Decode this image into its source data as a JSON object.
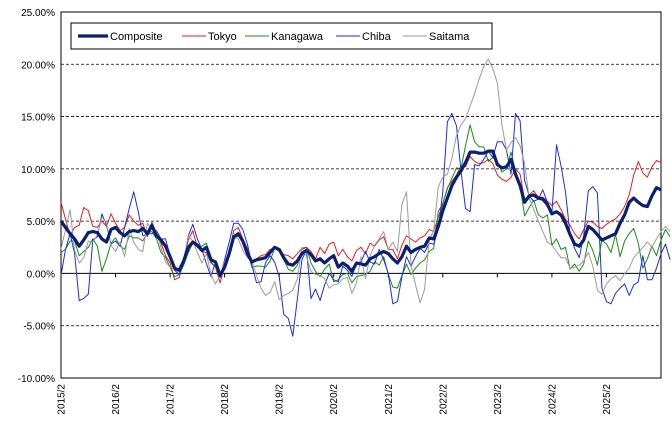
{
  "chart_data": {
    "type": "line",
    "title": "",
    "xlabel": "",
    "ylabel": "",
    "ylim": [
      -10,
      25
    ],
    "y_ticks": [
      "25.00%",
      "20.00%",
      "15.00%",
      "10.00%",
      "5.00%",
      "0.00%",
      "-5.00%",
      "-10.00%"
    ],
    "x_ticks": [
      "2015/2",
      "2016/2",
      "2017/2",
      "2018/2",
      "2019/2",
      "2020/2",
      "2021/2",
      "2022/2",
      "2023/2",
      "2024/2",
      "2025/2"
    ],
    "x_start": "2015/2",
    "x_end": "2025/2",
    "grid": "horizontal dashed",
    "legend_position": "top-left",
    "series": [
      {
        "name": "Composite",
        "color": "#0a1f6e",
        "width": 3.2,
        "values": [
          5.0,
          4.4,
          3.8,
          3.3,
          2.6,
          3.2,
          3.9,
          4.0,
          3.9,
          3.3,
          3.0,
          4.2,
          4.4,
          3.9,
          3.6,
          4.0,
          4.1,
          4.0,
          4.3,
          3.8,
          4.6,
          3.6,
          3.2,
          2.6,
          1.6,
          0.5,
          0.3,
          1.2,
          2.5,
          3.0,
          2.7,
          2.2,
          2.5,
          1.3,
          1.1,
          -0.2,
          0.6,
          1.9,
          3.5,
          3.8,
          3.1,
          1.9,
          1.1,
          1.3,
          1.4,
          1.5,
          2.0,
          2.5,
          2.3,
          1.5,
          0.9,
          0.8,
          1.2,
          1.9,
          2.2,
          1.8,
          1.2,
          1.4,
          1.0,
          1.4,
          1.7,
          0.6,
          1.0,
          0.7,
          0.2,
          1.0,
          0.9,
          0.8,
          1.4,
          1.6,
          1.9,
          2.1,
          1.9,
          1.4,
          1.0,
          1.6,
          2.6,
          2.0,
          2.3,
          2.5,
          2.6,
          3.4,
          3.3,
          4.5,
          6.0,
          7.2,
          8.4,
          9.2,
          9.8,
          10.6,
          11.6,
          11.6,
          11.5,
          11.5,
          11.7,
          11.7,
          10.4,
          10.1,
          10.2,
          10.9,
          9.5,
          8.4,
          6.8,
          7.4,
          7.5,
          7.2,
          7.1,
          6.6,
          5.7,
          5.9,
          5.6,
          4.8,
          3.7,
          2.8,
          2.6,
          3.2,
          4.5,
          4.2,
          3.7,
          3.2,
          3.4,
          3.6,
          3.8,
          4.8,
          5.6,
          6.8,
          7.2,
          6.8,
          6.5,
          6.4,
          7.4,
          8.2,
          8.0
        ]
      },
      {
        "name": "Tokyo",
        "color": "#e81c1c",
        "width": 1,
        "values": [
          6.8,
          5.2,
          3.6,
          4.4,
          4.6,
          6.3,
          6.0,
          4.5,
          4.4,
          5.0,
          4.5,
          5.7,
          4.8,
          4.1,
          4.4,
          5.6,
          5.0,
          4.6,
          4.8,
          3.5,
          4.9,
          3.7,
          2.9,
          1.7,
          1.0,
          -0.6,
          -0.4,
          1.2,
          3.2,
          4.1,
          2.5,
          2.1,
          2.0,
          1.0,
          0.6,
          -0.9,
          0.7,
          2.0,
          4.1,
          4.4,
          3.3,
          2.4,
          1.2,
          1.4,
          1.7,
          1.8,
          2.3,
          2.4,
          2.1,
          1.8,
          1.7,
          1.4,
          1.9,
          2.4,
          2.5,
          2.1,
          1.4,
          2.5,
          1.9,
          2.8,
          3.0,
          1.7,
          2.3,
          1.6,
          1.2,
          2.2,
          2.5,
          1.9,
          2.9,
          2.6,
          3.2,
          3.5,
          2.3,
          2.3,
          1.4,
          2.7,
          3.6,
          3.3,
          3.0,
          3.4,
          3.6,
          4.2,
          4.0,
          5.4,
          6.6,
          8.2,
          8.8,
          9.4,
          10.3,
          10.2,
          11.2,
          10.7,
          10.5,
          10.6,
          10.9,
          10.5,
          9.4,
          9.0,
          8.8,
          9.2,
          10.0,
          9.5,
          7.0,
          7.5,
          7.9,
          7.3,
          7.3,
          6.9,
          6.5,
          6.9,
          6.1,
          5.2,
          4.6,
          3.8,
          3.3,
          4.2,
          5.0,
          4.9,
          4.5,
          4.3,
          4.7,
          5.0,
          5.2,
          5.7,
          6.4,
          7.5,
          9.4,
          10.7,
          9.6,
          9.2,
          10.2,
          10.8,
          10.6
        ]
      },
      {
        "name": "Kanagawa",
        "color": "#1a8a1a",
        "width": 1,
        "values": [
          2.0,
          2.3,
          3.1,
          3.1,
          1.7,
          2.1,
          2.5,
          3.3,
          2.6,
          0.2,
          1.4,
          2.9,
          3.4,
          2.6,
          2.3,
          3.6,
          3.4,
          3.4,
          3.1,
          3.9,
          4.0,
          3.3,
          2.0,
          1.5,
          0.6,
          -0.3,
          -0.1,
          0.8,
          2.0,
          2.9,
          2.5,
          2.6,
          2.9,
          1.1,
          0.6,
          0.0,
          0.7,
          1.8,
          3.3,
          3.6,
          3.0,
          2.1,
          0.6,
          0.7,
          0.7,
          0.6,
          1.2,
          2.4,
          2.3,
          1.3,
          0.4,
          0.2,
          0.8,
          2.3,
          2.5,
          1.0,
          0.2,
          -0.3,
          0.4,
          0.9,
          -0.8,
          -0.6,
          -0.1,
          0.0,
          -0.9,
          -0.3,
          -0.2,
          -0.1,
          0.2,
          1.1,
          0.8,
          1.6,
          -0.1,
          -1.3,
          -1.4,
          -0.2,
          0.9,
          -0.1,
          0.5,
          1.0,
          1.3,
          2.1,
          2.4,
          5.9,
          6.7,
          8.1,
          9.1,
          10.1,
          10.0,
          12.2,
          14.2,
          12.6,
          12.1,
          12.1,
          10.7,
          11.1,
          10.7,
          9.7,
          10.0,
          11.6,
          9.8,
          8.4,
          5.5,
          6.3,
          7.0,
          5.6,
          5.3,
          5.6,
          2.7,
          3.3,
          2.3,
          2.5,
          0.4,
          0.9,
          0.2,
          0.9,
          3.1,
          2.2,
          0.8,
          3.2,
          2.8,
          2.0,
          3.7,
          1.6,
          3.1,
          3.8,
          4.3,
          2.9,
          0.5,
          1.4,
          2.6,
          1.7,
          3.2,
          4.2,
          3.5
        ]
      },
      {
        "name": "Chiba",
        "color": "#1a2ee0",
        "width": 1,
        "values": [
          -0.2,
          2.3,
          3.8,
          1.9,
          -2.6,
          -2.4,
          -2.0,
          3.2,
          3.5,
          5.7,
          4.6,
          2.8,
          3.1,
          2.6,
          4.4,
          6.2,
          7.8,
          5.9,
          3.6,
          3.8,
          3.8,
          4.1,
          3.3,
          3.3,
          1.7,
          0.3,
          -0.1,
          1.2,
          3.6,
          4.7,
          3.3,
          2.3,
          0.9,
          -0.3,
          1.1,
          -0.4,
          1.3,
          3.0,
          4.8,
          4.8,
          4.2,
          2.8,
          0.8,
          -0.9,
          -0.8,
          1.0,
          1.7,
          1.1,
          -0.3,
          -3.9,
          -4.3,
          -6.0,
          -2.4,
          1.3,
          2.3,
          -2.4,
          -1.5,
          -2.6,
          -1.1,
          0.0,
          -0.6,
          -0.8,
          0.7,
          0.3,
          -0.3,
          1.0,
          1.1,
          2.1,
          1.1,
          0.9,
          2.3,
          1.3,
          0.0,
          -2.9,
          -2.7,
          -0.3,
          1.6,
          0.7,
          1.6,
          2.4,
          2.0,
          2.9,
          2.8,
          4.2,
          7.8,
          14.5,
          15.3,
          14.1,
          9.8,
          6.2,
          5.9,
          10.4,
          10.3,
          10.9,
          11.7,
          11.1,
          12.6,
          12.6,
          11.8,
          9.5,
          15.3,
          14.6,
          8.9,
          7.4,
          6.9,
          7.1,
          8.0,
          6.8,
          5.8,
          12.3,
          10.3,
          7.8,
          3.7,
          2.4,
          1.5,
          3.6,
          7.9,
          8.3,
          7.7,
          -1.4,
          -2.7,
          -2.9,
          -1.9,
          -1.4,
          -1.0,
          -2.1,
          -1.1,
          -0.8,
          1.7,
          -0.6,
          -0.6,
          0.5,
          1.9,
          2.8,
          1.3
        ]
      },
      {
        "name": "Saitama",
        "color": "#9b9b9b",
        "width": 1,
        "values": [
          2.3,
          4.2,
          6.1,
          2.2,
          1.0,
          1.5,
          3.1,
          3.0,
          3.7,
          5.4,
          4.8,
          2.7,
          2.1,
          3.0,
          1.6,
          4.3,
          3.0,
          2.3,
          2.1,
          4.8,
          4.2,
          4.0,
          2.5,
          1.1,
          0.6,
          0.4,
          0.3,
          1.4,
          3.6,
          3.1,
          2.0,
          1.0,
          1.9,
          -0.1,
          -1.0,
          -0.2,
          1.1,
          2.0,
          3.5,
          3.3,
          2.2,
          1.5,
          1.2,
          -0.2,
          -1.4,
          -2.1,
          -1.8,
          -0.8,
          -2.5,
          -2.1,
          -1.9,
          -1.6,
          -0.5,
          2.5,
          1.6,
          0.2,
          -0.1,
          -0.2,
          -0.5,
          -1.4,
          -1.1,
          -1.0,
          -0.5,
          -0.4,
          -1.9,
          -0.9,
          1.6,
          -0.5,
          1.7,
          2.7,
          3.3,
          4.0,
          2.3,
          3.0,
          2.1,
          6.6,
          7.8,
          0.8,
          -1.1,
          -2.8,
          -1.5,
          3.2,
          4.1,
          8.3,
          9.2,
          9.5,
          11.0,
          13.2,
          14.2,
          14.8,
          16.0,
          17.2,
          18.6,
          19.8,
          20.5,
          19.6,
          18.2,
          14.2,
          11.8,
          12.5,
          13.0,
          12.2,
          10.5,
          7.2,
          6.1,
          5.0,
          4.0,
          3.0,
          2.7,
          2.1,
          1.5,
          1.5,
          0.5,
          0.6,
          0.8,
          1.2,
          2.0,
          0.7,
          -1.6,
          -2.0,
          -1.0,
          -0.5,
          -0.2,
          -0.7,
          0.0,
          0.5,
          1.5,
          2.0,
          2.5,
          3.0,
          2.5,
          3.3,
          4.0,
          4.5,
          4.0
        ]
      }
    ]
  }
}
